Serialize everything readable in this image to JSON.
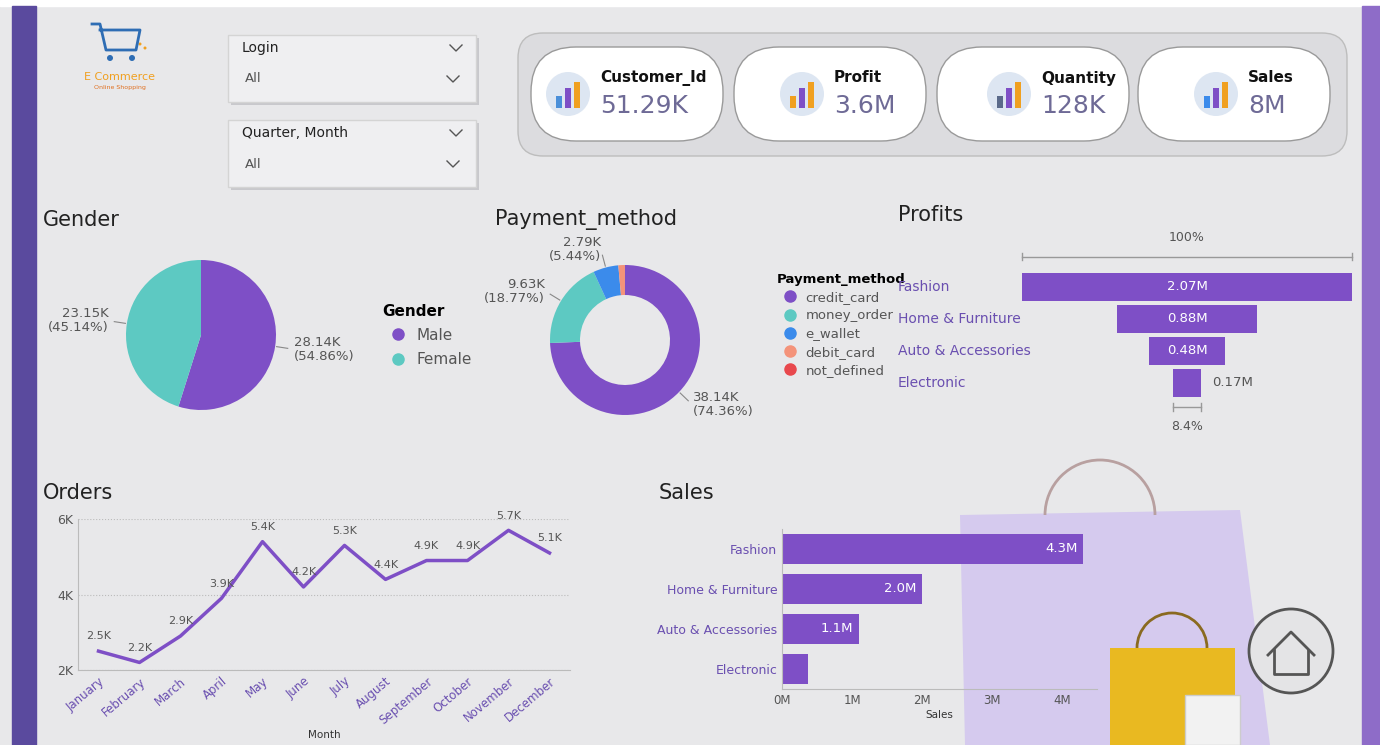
{
  "header": {
    "logo_title": "E Commerce",
    "logo_subtitle": "Online Shopping"
  },
  "slicers": [
    {
      "title": "Login",
      "value": "All"
    },
    {
      "title": "Quarter, Month",
      "value": "All"
    }
  ],
  "cards": [
    {
      "title": "Customer_Id",
      "value": "51.29K"
    },
    {
      "title": "Profit",
      "value": "3.6M"
    },
    {
      "title": "Quantity",
      "value": "128K"
    },
    {
      "title": "Sales",
      "value": "8M"
    }
  ],
  "chart_data": [
    {
      "type": "pie",
      "title": "Gender",
      "categories": [
        "Male",
        "Female"
      ],
      "values": [
        28140,
        23150
      ],
      "value_labels": [
        "28.14K\n(54.86%)",
        "23.15K\n(45.14%)"
      ],
      "colors": [
        "#7E4FC6",
        "#5DC9C2"
      ],
      "data_labels": true,
      "legend": "upper left",
      "legend_title": "Gender"
    },
    {
      "type": "donut",
      "title": "Payment_method",
      "categories": [
        "credit_card",
        "money_order",
        "e_wallet",
        "debit_card",
        "not_defined"
      ],
      "values": [
        38140,
        9630,
        2790,
        720,
        10
      ],
      "value_labels": [
        "38.14K\n(74.36%)",
        "9.63K\n(18.77%)",
        "2.79K\n(5.44%)",
        null,
        null
      ],
      "colors": [
        "#7E4FC6",
        "#5DC9C2",
        "#3B8BEB",
        "#F4937A",
        "#E8484D"
      ],
      "data_labels": true,
      "legend": "upper left",
      "legend_title": "Payment_method"
    },
    {
      "type": "funnel",
      "title": "Profits",
      "categories": [
        "Fashion",
        "Home & Furniture",
        "Auto & Accessories",
        "Electronic"
      ],
      "values": [
        2070000,
        880000,
        480000,
        170000
      ],
      "value_labels": [
        "2.07M",
        "0.88M",
        "0.48M",
        "0.17M"
      ],
      "annotations": [
        "100%",
        "8.4%"
      ],
      "color": "#7E4FC6",
      "data_labels": true
    },
    {
      "type": "line",
      "title": "Orders",
      "x_label": "Month",
      "categories": [
        "January",
        "February",
        "March",
        "April",
        "May",
        "June",
        "July",
        "August",
        "September",
        "October",
        "November",
        "December"
      ],
      "values": [
        2500,
        2200,
        2900,
        3900,
        5400,
        4200,
        5300,
        4400,
        4900,
        4900,
        5700,
        5100
      ],
      "value_labels": [
        "2.5K",
        "2.2K",
        "2.9K",
        "3.9K",
        "5.4K",
        "4.2K",
        "5.3K",
        "4.4K",
        "4.9K",
        "4.9K",
        "5.7K",
        "5.1K"
      ],
      "ylim": [
        2000,
        6000
      ],
      "yticks": [
        {
          "value": 2000,
          "label": "2K"
        },
        {
          "value": 4000,
          "label": "4K"
        },
        {
          "value": 6000,
          "label": "6K"
        }
      ],
      "grid": true,
      "color": "#7E4FC6",
      "data_labels": true
    },
    {
      "type": "bar",
      "orientation": "horizontal",
      "title": "Sales",
      "x_label": "Sales",
      "categories": [
        "Fashion",
        "Home & Furniture",
        "Auto & Accessories",
        "Electronic"
      ],
      "values": [
        4300000,
        2000000,
        1100000,
        370000
      ],
      "value_labels": [
        "4.3M",
        "2.0M",
        "1.1M",
        null
      ],
      "xlim": [
        0,
        4500000
      ],
      "xticks": [
        {
          "value": 0,
          "label": "0M"
        },
        {
          "value": 1000000,
          "label": "1M"
        },
        {
          "value": 2000000,
          "label": "2M"
        },
        {
          "value": 3000000,
          "label": "3M"
        },
        {
          "value": 4000000,
          "label": "4M"
        }
      ],
      "color": "#7E4FC6",
      "data_labels": true
    }
  ]
}
